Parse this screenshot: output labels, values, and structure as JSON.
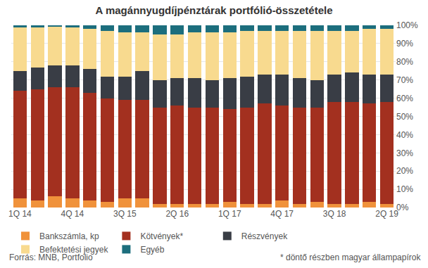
{
  "chart_data": {
    "type": "bar",
    "stacked": true,
    "title": "A magánnyugdíjpénztárak portfólió-összetétele",
    "source": "Forrás: MNB, Portfolio",
    "footnote": "* döntő részben magyar állampapírok",
    "categories": [
      "1Q 14",
      null,
      null,
      "4Q 14",
      null,
      null,
      "3Q 15",
      null,
      null,
      "2Q 16",
      null,
      null,
      "1Q 17",
      null,
      null,
      "4Q 17",
      null,
      null,
      "3Q 18",
      null,
      null,
      "2Q 19"
    ],
    "series": [
      {
        "name": "Bankszámla, kp",
        "color": "#f0923b",
        "values": [
          5,
          4,
          6,
          5,
          4,
          3,
          5,
          5,
          2,
          2,
          2,
          2,
          3,
          2,
          2,
          4,
          2,
          3,
          2,
          2,
          3,
          2
        ]
      },
      {
        "name": "Kötvények*",
        "color": "#a3301f",
        "values": [
          59,
          61,
          60,
          61,
          59,
          57,
          54,
          54,
          53,
          54,
          53,
          53,
          51,
          53,
          55,
          52,
          53,
          52,
          56,
          56,
          54,
          56
        ]
      },
      {
        "name": "Részvények",
        "color": "#393d45",
        "values": [
          11,
          12,
          12,
          12,
          13,
          12,
          13,
          16,
          15,
          15,
          16,
          15,
          17,
          17,
          16,
          17,
          16,
          15,
          15,
          16,
          16,
          15
        ]
      },
      {
        "name": "Befektetési jegyek",
        "color": "#f8da8f",
        "values": [
          24,
          22,
          21.5,
          21,
          22,
          25,
          24,
          21,
          25,
          24,
          25,
          26,
          25,
          25,
          24,
          24,
          26,
          27,
          24,
          23,
          25,
          25
        ]
      },
      {
        "name": "Egyéb",
        "color": "#1c6e7d",
        "values": [
          1,
          1,
          0.5,
          1,
          2,
          3,
          4,
          4,
          5,
          5,
          4,
          4,
          4,
          3,
          3,
          3,
          3,
          3,
          3,
          3,
          2,
          2
        ]
      }
    ],
    "ylim": [
      0,
      100
    ],
    "yticks": [
      {
        "value": 0,
        "label": "0%"
      },
      {
        "value": 10,
        "label": "10%"
      },
      {
        "value": 20,
        "label": "20%"
      },
      {
        "value": 30,
        "label": "30%"
      },
      {
        "value": 40,
        "label": "40%"
      },
      {
        "value": 50,
        "label": "50%"
      },
      {
        "value": 60,
        "label": "60%"
      },
      {
        "value": 70,
        "label": "70%"
      },
      {
        "value": 80,
        "label": "80%"
      },
      {
        "value": 90,
        "label": "90%"
      },
      {
        "value": 100,
        "label": "100%"
      }
    ],
    "grid": true,
    "legend": "bottom"
  }
}
